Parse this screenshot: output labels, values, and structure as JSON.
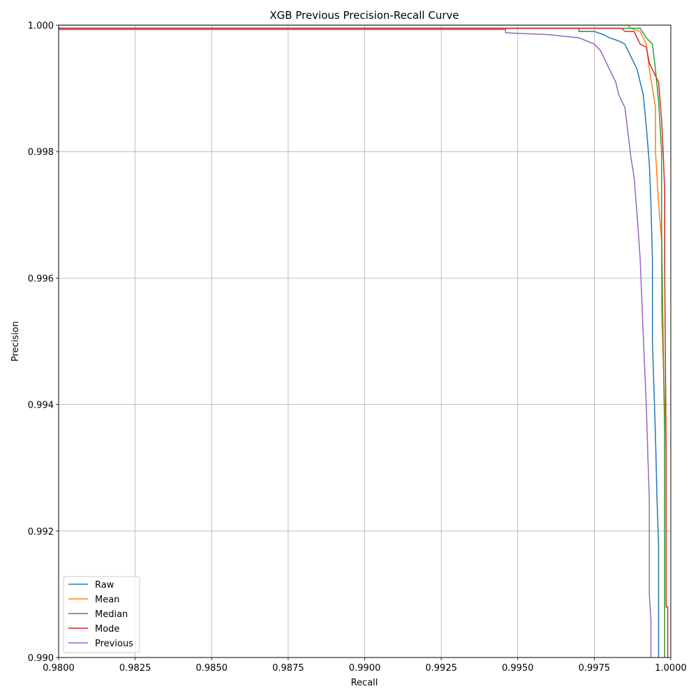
{
  "chart_data": {
    "type": "line",
    "title": "XGB Previous Precision-Recall Curve",
    "xlabel": "Recall",
    "ylabel": "Precision",
    "xlim": [
      0.98,
      1.0
    ],
    "ylim": [
      0.99,
      1.0
    ],
    "xticks": [
      "0.9800",
      "0.9825",
      "0.9850",
      "0.9875",
      "0.9900",
      "0.9925",
      "0.9950",
      "0.9975",
      "1.0000"
    ],
    "yticks": [
      "0.990",
      "0.992",
      "0.994",
      "0.996",
      "0.998",
      "1.000"
    ],
    "grid": true,
    "legend_position": "lower-left",
    "series": [
      {
        "name": "Raw",
        "color": "#1f77b4",
        "points": [
          [
            0.98,
            0.99995
          ],
          [
            0.997,
            0.99995
          ],
          [
            0.997,
            0.9999
          ],
          [
            0.9975,
            0.9999
          ],
          [
            0.9978,
            0.99985
          ],
          [
            0.998,
            0.9998
          ],
          [
            0.9983,
            0.99975
          ],
          [
            0.9985,
            0.9997
          ],
          [
            0.9987,
            0.9995
          ],
          [
            0.9989,
            0.9993
          ],
          [
            0.999,
            0.9991
          ],
          [
            0.9991,
            0.9989
          ],
          [
            0.9992,
            0.9984
          ],
          [
            0.9993,
            0.9978
          ],
          [
            0.99935,
            0.9972
          ],
          [
            0.9994,
            0.9963
          ],
          [
            0.9994,
            0.995
          ],
          [
            0.9995,
            0.9935
          ],
          [
            0.99955,
            0.9925
          ],
          [
            0.9996,
            0.9918
          ],
          [
            0.9996,
            0.99
          ]
        ]
      },
      {
        "name": "Mean",
        "color": "#ff7f0e",
        "points": [
          [
            0.98,
            1.0
          ],
          [
            0.9986,
            1.0
          ],
          [
            0.9987,
            0.99995
          ],
          [
            0.999,
            0.9999
          ],
          [
            0.9992,
            0.9997
          ],
          [
            0.9993,
            0.9993
          ],
          [
            0.9994,
            0.999
          ],
          [
            0.9995,
            0.9987
          ],
          [
            0.9995,
            0.998
          ],
          [
            0.9996,
            0.9972
          ],
          [
            0.9997,
            0.9966
          ],
          [
            0.9997,
            0.9955
          ],
          [
            0.9998,
            0.994
          ],
          [
            0.9998,
            0.99
          ]
        ]
      },
      {
        "name": "Median",
        "color": "#2ca02c",
        "points": [
          [
            0.98,
            0.99995
          ],
          [
            0.999,
            0.99995
          ],
          [
            0.9992,
            0.9998
          ],
          [
            0.9994,
            0.9997
          ],
          [
            0.9995,
            0.9993
          ],
          [
            0.9996,
            0.9988
          ],
          [
            0.9997,
            0.998
          ],
          [
            0.9997,
            0.9968
          ],
          [
            0.99975,
            0.995
          ],
          [
            0.9998,
            0.9935
          ],
          [
            0.9998,
            0.99
          ]
        ]
      },
      {
        "name": "Mode",
        "color": "#d62728",
        "points": [
          [
            0.98,
            0.99995
          ],
          [
            0.9984,
            0.99995
          ],
          [
            0.9985,
            0.9999
          ],
          [
            0.9988,
            0.9999
          ],
          [
            0.9989,
            0.9998
          ],
          [
            0.999,
            0.9997
          ],
          [
            0.9992,
            0.99965
          ],
          [
            0.9993,
            0.9994
          ],
          [
            0.9994,
            0.9993
          ],
          [
            0.9995,
            0.9992
          ],
          [
            0.9996,
            0.9991
          ],
          [
            0.9997,
            0.9985
          ],
          [
            0.99975,
            0.998
          ],
          [
            0.9998,
            0.9974
          ],
          [
            0.9998,
            0.9962
          ],
          [
            0.99985,
            0.9931
          ],
          [
            0.99985,
            0.9908
          ],
          [
            0.9999,
            0.9908
          ],
          [
            0.9999,
            0.99
          ]
        ]
      },
      {
        "name": "Previous",
        "color": "#9467bd",
        "points": [
          [
            0.98,
            0.99993
          ],
          [
            0.9946,
            0.99993
          ],
          [
            0.9946,
            0.99988
          ],
          [
            0.995,
            0.99987
          ],
          [
            0.996,
            0.99985
          ],
          [
            0.997,
            0.9998
          ],
          [
            0.9975,
            0.9997
          ],
          [
            0.9977,
            0.9996
          ],
          [
            0.9978,
            0.9995
          ],
          [
            0.998,
            0.9993
          ],
          [
            0.9982,
            0.9991
          ],
          [
            0.9983,
            0.9989
          ],
          [
            0.9985,
            0.9987
          ],
          [
            0.9986,
            0.9983
          ],
          [
            0.9987,
            0.9979
          ],
          [
            0.9988,
            0.9976
          ],
          [
            0.9989,
            0.997
          ],
          [
            0.999,
            0.9963
          ],
          [
            0.9991,
            0.9951
          ],
          [
            0.9992,
            0.994
          ],
          [
            0.99925,
            0.9932
          ],
          [
            0.9993,
            0.9925
          ],
          [
            0.9993,
            0.991
          ],
          [
            0.99935,
            0.9906
          ],
          [
            0.99935,
            0.99
          ]
        ]
      }
    ]
  }
}
